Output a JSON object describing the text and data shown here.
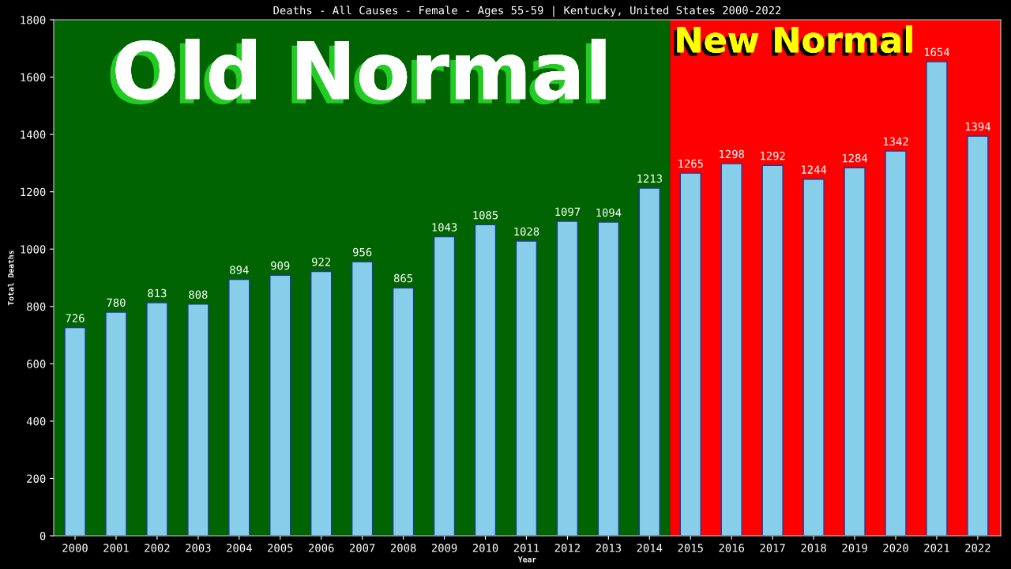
{
  "chart_data": {
    "type": "bar",
    "title": "Deaths - All Causes - Female - Ages 55-59 | Kentucky, United States 2000-2022",
    "xlabel": "Year",
    "ylabel": "Total Deaths",
    "categories": [
      "2000",
      "2001",
      "2002",
      "2003",
      "2004",
      "2005",
      "2006",
      "2007",
      "2008",
      "2009",
      "2010",
      "2011",
      "2012",
      "2013",
      "2014",
      "2015",
      "2016",
      "2017",
      "2018",
      "2019",
      "2020",
      "2021",
      "2022"
    ],
    "values": [
      726,
      780,
      813,
      808,
      894,
      909,
      922,
      956,
      865,
      1043,
      1085,
      1028,
      1097,
      1094,
      1213,
      1265,
      1298,
      1292,
      1244,
      1284,
      1342,
      1654,
      1394
    ],
    "color": "#87ceeb",
    "ylim": [
      0,
      1800
    ],
    "yticks": [
      0,
      200,
      400,
      600,
      800,
      1000,
      1200,
      1400,
      1600,
      1800
    ],
    "data_labels": true,
    "grid": false,
    "legend": false,
    "bands": [
      {
        "axis": "x",
        "from": "2000",
        "to": "2014",
        "label": "Old Normal",
        "color": "#006400"
      },
      {
        "axis": "x",
        "from": "2015",
        "to": "2022",
        "label": "New Normal",
        "color": "#ff0000"
      }
    ]
  }
}
